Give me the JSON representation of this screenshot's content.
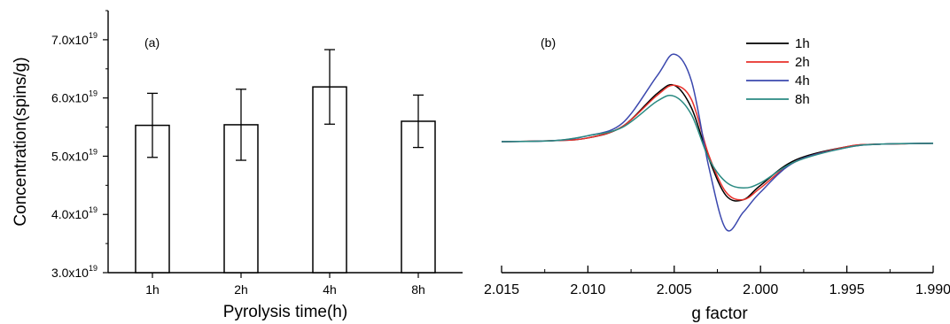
{
  "chart_data": [
    {
      "type": "bar",
      "panel_label": "(a)",
      "xlabel": "Pyrolysis time(h)",
      "ylabel": "Concentration(spins/g)",
      "categories": [
        "1h",
        "2h",
        "4h",
        "8h"
      ],
      "values": [
        5.53,
        5.54,
        6.19,
        5.6
      ],
      "errors": [
        0.55,
        0.61,
        0.64,
        0.45
      ],
      "ylim": [
        3.0,
        7.5
      ],
      "yticks": [
        3.0,
        4.0,
        5.0,
        6.0,
        7.0
      ],
      "ytick_labels": [
        {
          "mantissa": "3.0x10",
          "exponent": "19"
        },
        {
          "mantissa": "4.0x10",
          "exponent": "19"
        },
        {
          "mantissa": "5.0x10",
          "exponent": "19"
        },
        {
          "mantissa": "6.0x10",
          "exponent": "19"
        },
        {
          "mantissa": "7.0x10",
          "exponent": "19"
        }
      ],
      "bar_color": "#ffffff",
      "edge_color": "#000000"
    },
    {
      "type": "line",
      "panel_label": "(b)",
      "xlabel": "g factor",
      "ylabel": "",
      "x_reversed": true,
      "xlim": [
        2.015,
        1.99
      ],
      "xticks": [
        "2.015",
        "2.010",
        "2.005",
        "2.000",
        "1.995",
        "1.990"
      ],
      "legend": "top-right",
      "series": [
        {
          "name": "1h",
          "color": "#000000",
          "x": [
            2.015,
            2.012,
            2.01,
            2.008,
            2.006,
            2.005,
            2.004,
            2.003,
            2.002,
            2.001,
            2.0,
            1.998,
            1.995,
            1.993,
            1.99
          ],
          "y": [
            0.0,
            0.06,
            0.22,
            0.9,
            2.85,
            3.35,
            2.0,
            -1.0,
            -3.2,
            -3.45,
            -2.6,
            -1.1,
            -0.3,
            -0.15,
            -0.1
          ]
        },
        {
          "name": "2h",
          "color": "#e8302a",
          "x": [
            2.015,
            2.012,
            2.01,
            2.008,
            2.006,
            2.005,
            2.004,
            2.003,
            2.002,
            2.001,
            2.0,
            1.998,
            1.995,
            1.993,
            1.99
          ],
          "y": [
            0.0,
            0.06,
            0.22,
            0.9,
            2.75,
            3.35,
            2.5,
            -0.8,
            -3.0,
            -3.45,
            -2.75,
            -1.2,
            -0.3,
            -0.15,
            -0.1
          ]
        },
        {
          "name": "4h",
          "color": "#3b48ae",
          "x": [
            2.015,
            2.012,
            2.01,
            2.008,
            2.006,
            2.005,
            2.004,
            2.003,
            2.002,
            2.001,
            2.0,
            1.998,
            1.995,
            1.993,
            1.99
          ],
          "y": [
            0.0,
            0.06,
            0.35,
            1.1,
            3.9,
            5.2,
            3.6,
            -1.5,
            -5.2,
            -4.2,
            -3.0,
            -1.2,
            -0.35,
            -0.15,
            -0.1
          ]
        },
        {
          "name": "8h",
          "color": "#2a8a82",
          "x": [
            2.015,
            2.012,
            2.01,
            2.008,
            2.006,
            2.005,
            2.004,
            2.003,
            2.002,
            2.001,
            2.0,
            1.998,
            1.995,
            1.993,
            1.99
          ],
          "y": [
            0.0,
            0.06,
            0.35,
            0.85,
            2.4,
            2.7,
            1.6,
            -1.0,
            -2.4,
            -2.75,
            -2.45,
            -1.2,
            -0.35,
            -0.15,
            -0.1
          ]
        }
      ]
    }
  ]
}
